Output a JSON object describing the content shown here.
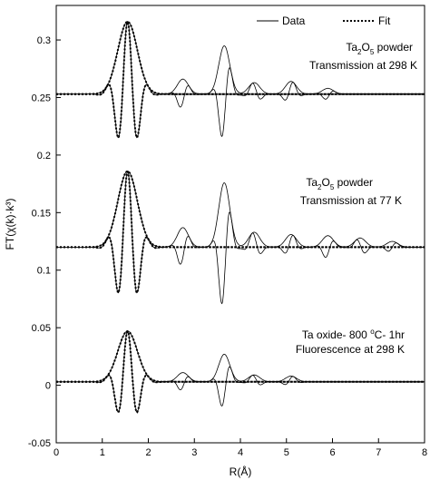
{
  "chart_data": {
    "type": "line",
    "xlabel": "R(Å)",
    "ylabel": "FT(χ(k)·k³)",
    "xlim": [
      0,
      8
    ],
    "ylim": [
      -0.05,
      0.33
    ],
    "x_ticks": [
      0,
      1,
      2,
      3,
      4,
      5,
      6,
      7,
      8
    ],
    "y_ticks": [
      -0.05,
      0,
      0.05,
      0.1,
      0.15,
      0.2,
      0.25,
      0.3
    ],
    "y_tick_labels": [
      "-0.05",
      "0",
      "0.05",
      "0.1",
      "0.15",
      "0.2",
      "0.25",
      "0.3"
    ],
    "grid": false,
    "legend": {
      "position": "top-right",
      "entries": [
        {
          "label": "Data",
          "style": "solid"
        },
        {
          "label": "Fit",
          "style": "dotted"
        }
      ]
    },
    "panels": [
      {
        "label_line1": {
          "pre": "Ta",
          "sub1": "2",
          "mid": "O",
          "sub2": "5",
          "post": " powder"
        },
        "label_line2": "Transmission at 298 K",
        "baseline": 0.253,
        "magnitude_peaks": [
          {
            "r": 1.55,
            "amp": 0.063
          },
          {
            "r": 2.75,
            "amp": 0.013
          },
          {
            "r": 3.65,
            "amp": 0.042
          },
          {
            "r": 4.3,
            "amp": 0.01
          },
          {
            "r": 5.1,
            "amp": 0.011
          },
          {
            "r": 5.9,
            "amp": 0.005
          }
        ]
      },
      {
        "label_line1": {
          "pre": "Ta",
          "sub1": "2",
          "mid": "O",
          "sub2": "5",
          "post": " powder"
        },
        "label_line2": "Transmission at 77 K",
        "baseline": 0.12,
        "magnitude_peaks": [
          {
            "r": 1.55,
            "amp": 0.066
          },
          {
            "r": 2.75,
            "amp": 0.017
          },
          {
            "r": 3.65,
            "amp": 0.056
          },
          {
            "r": 4.3,
            "amp": 0.013
          },
          {
            "r": 5.1,
            "amp": 0.011
          },
          {
            "r": 5.9,
            "amp": 0.01
          },
          {
            "r": 6.6,
            "amp": 0.008
          },
          {
            "r": 7.3,
            "amp": 0.005
          }
        ]
      },
      {
        "label_line1": {
          "pre": "Ta oxide- 800 ",
          "sup": "o",
          "post": "C- 1hr"
        },
        "label_line2": "Fluorescence at 298 K",
        "baseline": 0.003,
        "magnitude_peaks": [
          {
            "r": 1.55,
            "amp": 0.044
          },
          {
            "r": 2.75,
            "amp": 0.008
          },
          {
            "r": 3.65,
            "amp": 0.024
          },
          {
            "r": 4.3,
            "amp": 0.006
          },
          {
            "r": 5.1,
            "amp": 0.005
          }
        ]
      }
    ]
  }
}
